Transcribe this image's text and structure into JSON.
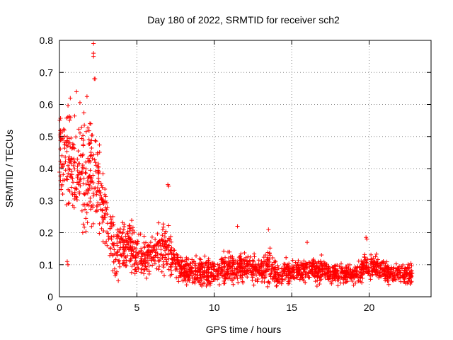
{
  "chart_data": {
    "type": "scatter",
    "title": "Day 180 of 2022, SRMTID for receiver sch2",
    "xlabel": "GPS time / hours",
    "ylabel": "SRMTID / TECUs",
    "xlim": [
      0,
      24
    ],
    "ylim": [
      0,
      0.8
    ],
    "x_ticks": [
      0,
      5,
      10,
      15,
      20
    ],
    "y_ticks": [
      0,
      0.1,
      0.2,
      0.3,
      0.4,
      0.5,
      0.6,
      0.7,
      0.8
    ],
    "grid": true,
    "marker": "+",
    "series": [
      {
        "name": "SRMTID",
        "color": "#ff0000",
        "profile": [
          {
            "x": 0.0,
            "y": 0.45,
            "spread": 0.11
          },
          {
            "x": 0.5,
            "y": 0.44,
            "spread": 0.12
          },
          {
            "x": 1.0,
            "y": 0.38,
            "spread": 0.13
          },
          {
            "x": 1.5,
            "y": 0.39,
            "spread": 0.14
          },
          {
            "x": 2.0,
            "y": 0.4,
            "spread": 0.16
          },
          {
            "x": 2.5,
            "y": 0.36,
            "spread": 0.11
          },
          {
            "x": 3.0,
            "y": 0.24,
            "spread": 0.09
          },
          {
            "x": 3.5,
            "y": 0.15,
            "spread": 0.07
          },
          {
            "x": 4.0,
            "y": 0.14,
            "spread": 0.07
          },
          {
            "x": 4.5,
            "y": 0.17,
            "spread": 0.07
          },
          {
            "x": 5.0,
            "y": 0.14,
            "spread": 0.06
          },
          {
            "x": 5.5,
            "y": 0.12,
            "spread": 0.05
          },
          {
            "x": 6.0,
            "y": 0.14,
            "spread": 0.06
          },
          {
            "x": 6.5,
            "y": 0.16,
            "spread": 0.06
          },
          {
            "x": 7.0,
            "y": 0.14,
            "spread": 0.06
          },
          {
            "x": 7.5,
            "y": 0.11,
            "spread": 0.04
          },
          {
            "x": 8.0,
            "y": 0.08,
            "spread": 0.03
          },
          {
            "x": 9.0,
            "y": 0.08,
            "spread": 0.04
          },
          {
            "x": 10.0,
            "y": 0.08,
            "spread": 0.04
          },
          {
            "x": 11.0,
            "y": 0.09,
            "spread": 0.04
          },
          {
            "x": 12.0,
            "y": 0.09,
            "spread": 0.04
          },
          {
            "x": 13.0,
            "y": 0.08,
            "spread": 0.03
          },
          {
            "x": 13.5,
            "y": 0.1,
            "spread": 0.05
          },
          {
            "x": 14.0,
            "y": 0.07,
            "spread": 0.03
          },
          {
            "x": 15.0,
            "y": 0.08,
            "spread": 0.03
          },
          {
            "x": 16.0,
            "y": 0.08,
            "spread": 0.03
          },
          {
            "x": 17.0,
            "y": 0.08,
            "spread": 0.03
          },
          {
            "x": 18.0,
            "y": 0.07,
            "spread": 0.025
          },
          {
            "x": 19.0,
            "y": 0.07,
            "spread": 0.025
          },
          {
            "x": 19.7,
            "y": 0.09,
            "spread": 0.04
          },
          {
            "x": 20.2,
            "y": 0.1,
            "spread": 0.04
          },
          {
            "x": 21.0,
            "y": 0.08,
            "spread": 0.03
          },
          {
            "x": 22.0,
            "y": 0.07,
            "spread": 0.025
          },
          {
            "x": 22.8,
            "y": 0.07,
            "spread": 0.025
          }
        ],
        "outliers": [
          {
            "x": 2.2,
            "y": 0.79
          },
          {
            "x": 2.2,
            "y": 0.76
          },
          {
            "x": 2.2,
            "y": 0.75
          },
          {
            "x": 2.25,
            "y": 0.68
          },
          {
            "x": 2.3,
            "y": 0.68
          },
          {
            "x": 1.1,
            "y": 0.64
          },
          {
            "x": 0.7,
            "y": 0.62
          },
          {
            "x": 7.0,
            "y": 0.35
          },
          {
            "x": 7.05,
            "y": 0.345
          },
          {
            "x": 0.5,
            "y": 0.11
          },
          {
            "x": 0.55,
            "y": 0.1
          },
          {
            "x": 19.8,
            "y": 0.185
          },
          {
            "x": 19.85,
            "y": 0.18
          },
          {
            "x": 11.5,
            "y": 0.22
          },
          {
            "x": 13.5,
            "y": 0.21
          },
          {
            "x": 16.0,
            "y": 0.17
          },
          {
            "x": 3.8,
            "y": 0.05
          }
        ],
        "density_per_hour": 95
      }
    ]
  }
}
